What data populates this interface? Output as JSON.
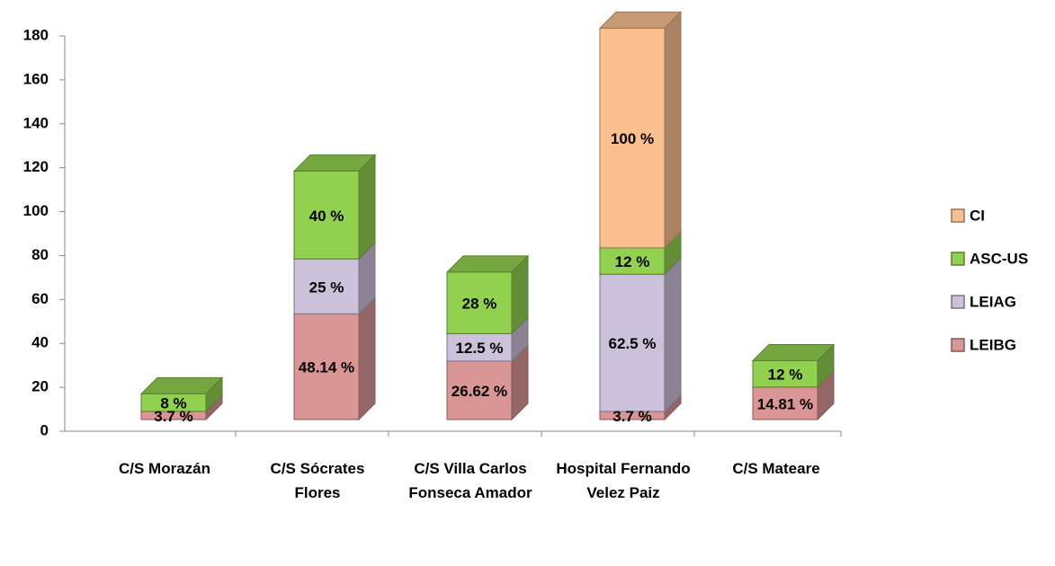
{
  "chart_data": {
    "type": "bar3d_stacked",
    "categories": [
      "C/S Morazán",
      "C/S Sócrates Flores",
      "C/S Villa Carlos Fonseca Amador",
      "Hospital Fernando Velez Paiz",
      "C/S Mateare"
    ],
    "series": [
      {
        "name": "LEIBG",
        "color": "#d99694",
        "values": [
          3.7,
          48.14,
          26.62,
          3.7,
          14.81
        ],
        "value_labels": [
          "3.7 %",
          "48.14 %",
          "26.62 %",
          "3.7 %",
          "14.81 %"
        ]
      },
      {
        "name": "LEIAG",
        "color": "#ccc1da",
        "values": [
          null,
          25,
          12.5,
          62.5,
          null
        ],
        "value_labels": [
          null,
          "25 %",
          "12.5 %",
          "62.5 %",
          null
        ]
      },
      {
        "name": "ASC-US",
        "color": "#92d050",
        "values": [
          8,
          40,
          28,
          12,
          12
        ],
        "value_labels": [
          "8 %",
          "40 %",
          "28 %",
          "12 %",
          "12 %"
        ]
      },
      {
        "name": "CI",
        "color": "#fac090",
        "values": [
          null,
          null,
          null,
          100,
          null
        ],
        "value_labels": [
          null,
          null,
          null,
          "100 %",
          null
        ]
      }
    ],
    "ylim": [
      0,
      180
    ],
    "yticks": [
      0,
      20,
      40,
      60,
      80,
      100,
      120,
      140,
      160,
      180
    ],
    "stacked": true,
    "legend": "right"
  }
}
